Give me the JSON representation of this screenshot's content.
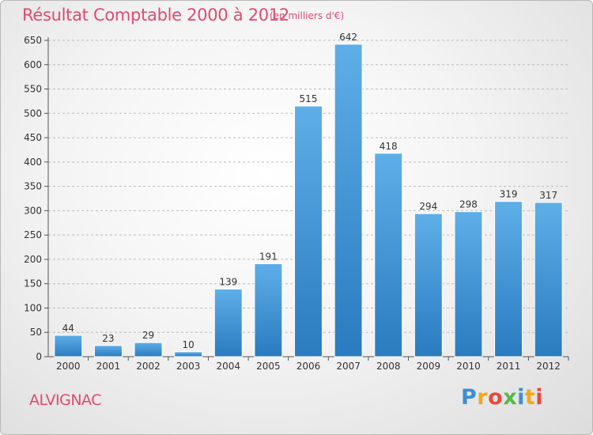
{
  "chart_data": {
    "type": "bar",
    "title": "Résultat Comptable 2000 à 2012",
    "unit_label": "(en milliers d'€)",
    "categories": [
      "2000",
      "2001",
      "2002",
      "2003",
      "2004",
      "2005",
      "2006",
      "2007",
      "2008",
      "2009",
      "2010",
      "2011",
      "2012"
    ],
    "values": [
      44,
      23,
      29,
      10,
      139,
      191,
      515,
      642,
      418,
      294,
      298,
      319,
      317
    ],
    "ylim": [
      0,
      650
    ],
    "yticks": [
      0,
      50,
      100,
      150,
      200,
      250,
      300,
      350,
      400,
      450,
      500,
      550,
      600,
      650
    ],
    "grid": true,
    "xlabel": "",
    "ylabel": ""
  },
  "commune": "ALVIGNAC",
  "logo": {
    "letters": [
      {
        "ch": "P",
        "color": "#3a8fd6"
      },
      {
        "ch": "r",
        "color": "#f2a81d"
      },
      {
        "ch": "o",
        "color": "#e8483f"
      },
      {
        "ch": "x",
        "color": "#56b947"
      },
      {
        "ch": "i",
        "color": "#3a8fd6"
      },
      {
        "ch": "t",
        "color": "#f2a81d"
      },
      {
        "ch": "i",
        "color": "#e8483f"
      }
    ]
  },
  "colors": {
    "accent": "#e04a73",
    "bar_top": "#5eaee8",
    "bar_bottom": "#2a7bbf",
    "grid": "#bcbcbc"
  }
}
